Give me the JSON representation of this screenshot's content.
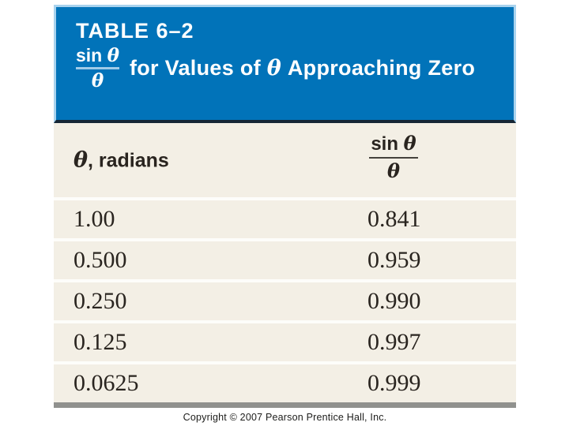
{
  "banner": {
    "title": "TABLE 6–2",
    "fraction": {
      "fn": "sin",
      "variable": "θ",
      "denominator": "θ"
    },
    "caption": {
      "before": "for Values of",
      "variable": "θ",
      "after": "Approaching Zero"
    }
  },
  "table": {
    "col1_header": {
      "variable": "θ",
      "rest": ", radians"
    },
    "col2_header": {
      "fn": "sin",
      "variable": "θ",
      "denominator": "θ"
    },
    "rows": [
      {
        "theta": "1.00",
        "ratio": "0.841"
      },
      {
        "theta": "0.500",
        "ratio": "0.959"
      },
      {
        "theta": "0.250",
        "ratio": "0.990"
      },
      {
        "theta": "0.125",
        "ratio": "0.997"
      },
      {
        "theta": "0.0625",
        "ratio": "0.999"
      }
    ]
  },
  "footer": {
    "copyright": "Copyright © 2007 Pearson Prentice Hall, Inc."
  },
  "colors": {
    "banner_blue": "#0173B9",
    "banner_edge": "#A9D3EE",
    "banner_rule": "#9FCBE8",
    "banner_border_bottom": "#152635",
    "body_cream": "#F3EFE5",
    "separator": "#FDFDFA",
    "text_dark": "#29241F",
    "header_rule": "#45423D",
    "bottom_bar": "#90918E",
    "copyright_color": "#1D1D1B"
  },
  "chart_data": {
    "type": "table",
    "title": "TABLE 6–2: sin θ / θ for Values of θ Approaching Zero",
    "columns": [
      "θ, radians",
      "sin θ / θ"
    ],
    "rows": [
      [
        1.0,
        0.841
      ],
      [
        0.5,
        0.959
      ],
      [
        0.25,
        0.99
      ],
      [
        0.125,
        0.997
      ],
      [
        0.0625,
        0.999
      ]
    ]
  }
}
